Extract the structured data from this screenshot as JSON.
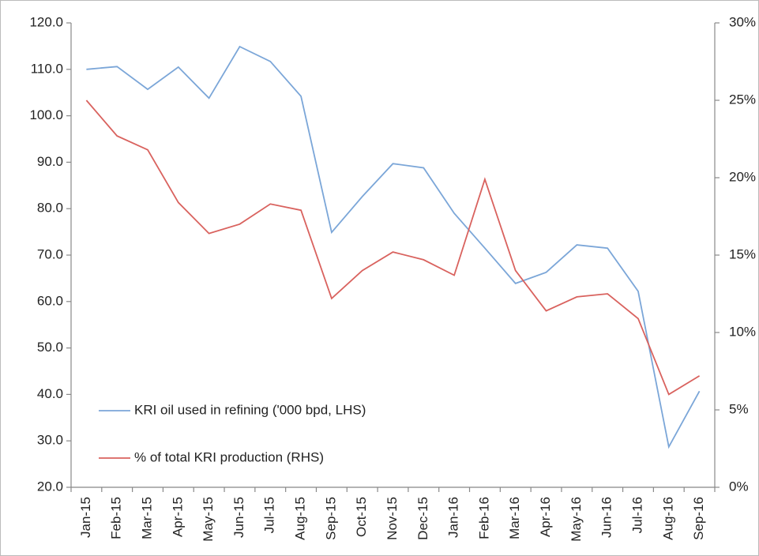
{
  "chart_data": {
    "type": "line",
    "categories": [
      "Jan-15",
      "Feb-15",
      "Mar-15",
      "Apr-15",
      "May-15",
      "Jun-15",
      "Jul-15",
      "Aug-15",
      "Sep-15",
      "Oct-15",
      "Nov-15",
      "Dec-15",
      "Jan-16",
      "Feb-16",
      "Mar-16",
      "Apr-16",
      "May-16",
      "Jun-16",
      "Jul-16",
      "Aug-16",
      "Sep-16"
    ],
    "series": [
      {
        "name": "KRI oil used in refining ('000 bpd, LHS)",
        "color": "#7ba6d8",
        "values": [
          110.0,
          110.6,
          105.7,
          110.5,
          103.8,
          114.9,
          111.7,
          104.2,
          74.9,
          82.6,
          89.7,
          88.8,
          79.0,
          71.5,
          63.9,
          66.3,
          72.2,
          71.5,
          62.2,
          28.7,
          40.7
        ]
      },
      {
        "name": "% of total KRI production (RHS)",
        "color": "#d9625e",
        "axis": "y2",
        "values": [
          25.0,
          22.7,
          21.8,
          18.4,
          16.4,
          17.0,
          18.3,
          17.9,
          12.2,
          14.0,
          15.2,
          14.7,
          13.7,
          19.9,
          14.0,
          11.4,
          12.3,
          12.5,
          10.9,
          6.0,
          7.2
        ]
      }
    ],
    "ylim": [
      20,
      120
    ],
    "yticks": [
      {
        "value": 20,
        "label": "20.0"
      },
      {
        "value": 30,
        "label": "30.0"
      },
      {
        "value": 40,
        "label": "40.0"
      },
      {
        "value": 50,
        "label": "50.0"
      },
      {
        "value": 60,
        "label": "60.0"
      },
      {
        "value": 70,
        "label": "70.0"
      },
      {
        "value": 80,
        "label": "80.0"
      },
      {
        "value": 90,
        "label": "90.0"
      },
      {
        "value": 100,
        "label": "100.0"
      },
      {
        "value": 110,
        "label": "110.0"
      },
      {
        "value": 120,
        "label": "120.0"
      }
    ],
    "y2lim": [
      0,
      30
    ],
    "y2ticks": [
      {
        "value": 0,
        "label": "0%"
      },
      {
        "value": 5,
        "label": "5%"
      },
      {
        "value": 10,
        "label": "10%"
      },
      {
        "value": 15,
        "label": "15%"
      },
      {
        "value": 20,
        "label": "20%"
      },
      {
        "value": 25,
        "label": "25%"
      },
      {
        "value": 30,
        "label": "30%"
      }
    ],
    "grid": false
  }
}
